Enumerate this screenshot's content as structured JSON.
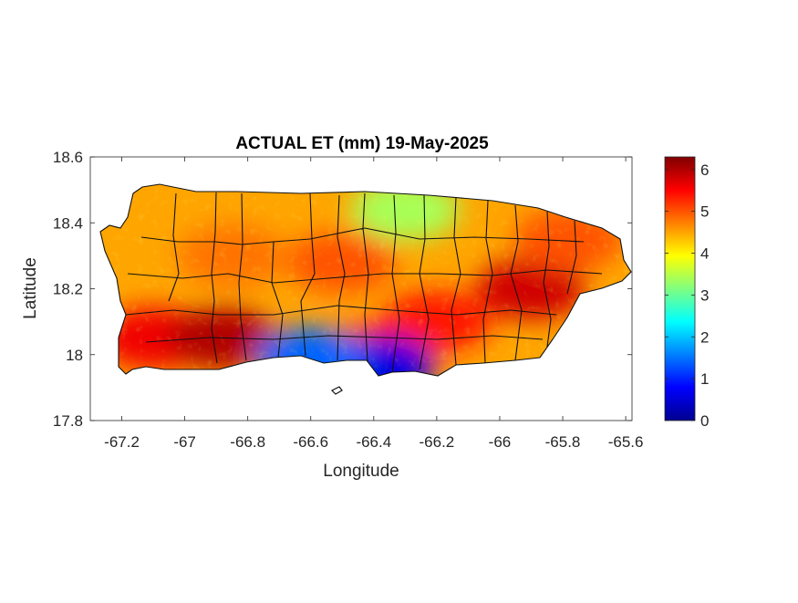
{
  "chart_data": {
    "type": "heatmap",
    "title": "ACTUAL ET (mm) 19-May-2025",
    "xlabel": "Longitude",
    "ylabel": "Latitude",
    "xlim": [
      -67.3,
      -65.58
    ],
    "ylim": [
      17.8,
      18.6
    ],
    "xticks": [
      -67.2,
      -67,
      -66.8,
      -66.6,
      -66.4,
      -66.2,
      -66,
      -65.8,
      -65.6
    ],
    "xtick_labels": [
      "-67.2",
      "-67",
      "-66.8",
      "-66.6",
      "-66.4",
      "-66.2",
      "-66",
      "-65.8",
      "-65.6"
    ],
    "yticks": [
      17.8,
      18,
      18.2,
      18.4,
      18.6
    ],
    "ytick_labels": [
      "17.8",
      "18",
      "18.2",
      "18.4",
      "18.6"
    ],
    "colorbar": {
      "range": [
        0,
        6.3
      ],
      "ticks": [
        0,
        1,
        2,
        3,
        4,
        5,
        6
      ],
      "tick_labels": [
        "0",
        "1",
        "2",
        "3",
        "4",
        "5",
        "6"
      ],
      "colormap": "jet"
    },
    "field_regions": [
      {
        "lon": -67.1,
        "lat": 18.05,
        "value": 5.6
      },
      {
        "lon": -66.88,
        "lat": 18.05,
        "value": 6.0
      },
      {
        "lon": -66.85,
        "lat": 18.3,
        "value": 4.8
      },
      {
        "lon": -66.5,
        "lat": 18.28,
        "value": 5.0
      },
      {
        "lon": -66.4,
        "lat": 18.0,
        "value": 5.4
      },
      {
        "lon": -66.2,
        "lat": 18.1,
        "value": 5.4
      },
      {
        "lon": -65.9,
        "lat": 18.2,
        "value": 5.8
      },
      {
        "lon": -65.78,
        "lat": 18.35,
        "value": 5.0
      },
      {
        "lon": -66.3,
        "lat": 18.44,
        "value": 3.4
      },
      {
        "lon": -66.38,
        "lat": 17.96,
        "value": 0.6
      },
      {
        "lon": -66.6,
        "lat": 17.99,
        "value": 1.4
      }
    ],
    "grid": false
  }
}
